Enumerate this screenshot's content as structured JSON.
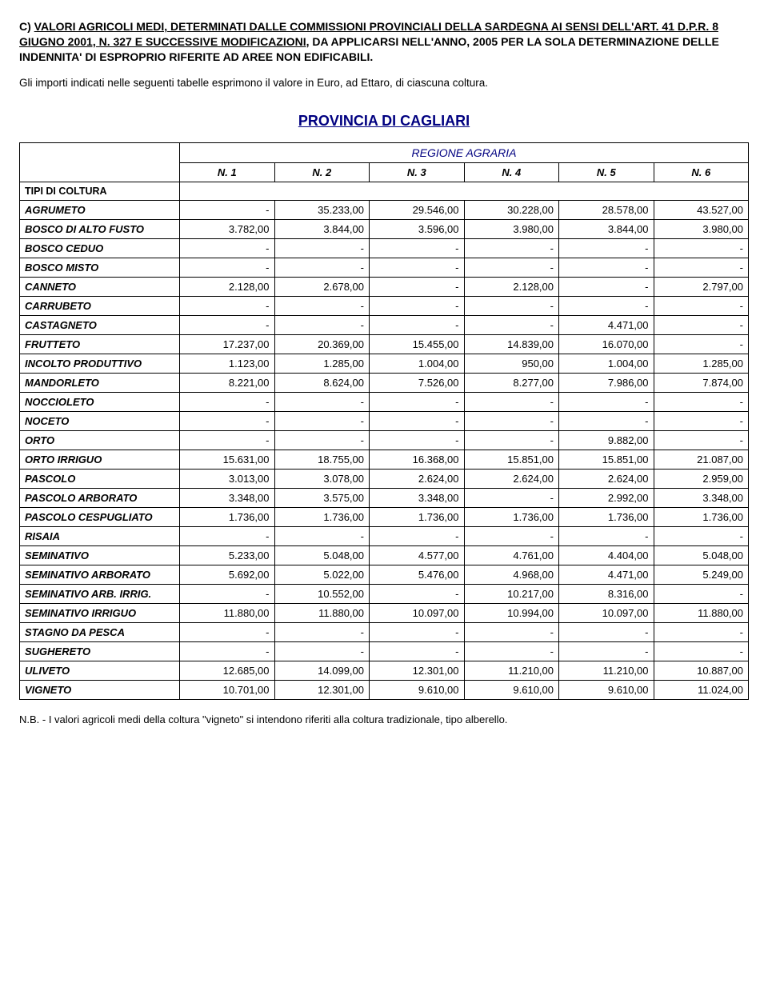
{
  "header": {
    "line1_prefix": "C) ",
    "line1_underlined": "VALORI AGRICOLI MEDI, DETERMINATI DALLE COMMISSIONI PROVINCIALI DELLA SARDEGNA AI SENSI DELL'ART. 41 D.P.R. 8 GIUGNO 2001, N. 327 E SUCCESSIVE MODIFICAZIONI",
    "line1_suffix": ", DA APPLICARSI NELL'ANNO, 2005 PER LA SOLA DETERMINAZIONE DELLE INDENNITA' DI ESPROPRIO RIFERITE AD AREE NON EDIFICABILI."
  },
  "intro": "Gli importi indicati nelle seguenti tabelle esprimono il valore in Euro, ad Ettaro, di ciascuna coltura.",
  "province_title": "PROVINCIA DI CAGLIARI",
  "table": {
    "region_header": "REGIONE AGRARIA",
    "types_label": "TIPI DI COLTURA",
    "columns": [
      "N. 1",
      "N. 2",
      "N. 3",
      "N. 4",
      "N. 5",
      "N. 6"
    ],
    "rows": [
      {
        "label": "AGRUMETO",
        "values": [
          "-",
          "35.233,00",
          "29.546,00",
          "30.228,00",
          "28.578,00",
          "43.527,00"
        ]
      },
      {
        "label": "BOSCO DI ALTO FUSTO",
        "values": [
          "3.782,00",
          "3.844,00",
          "3.596,00",
          "3.980,00",
          "3.844,00",
          "3.980,00"
        ]
      },
      {
        "label": "BOSCO CEDUO",
        "values": [
          "-",
          "-",
          "-",
          "-",
          "-",
          "-"
        ]
      },
      {
        "label": "BOSCO MISTO",
        "values": [
          "-",
          "-",
          "-",
          "-",
          "-",
          "-"
        ]
      },
      {
        "label": "CANNETO",
        "values": [
          "2.128,00",
          "2.678,00",
          "-",
          "2.128,00",
          "-",
          "2.797,00"
        ]
      },
      {
        "label": "CARRUBETO",
        "values": [
          "-",
          "-",
          "-",
          "-",
          "-",
          "-"
        ]
      },
      {
        "label": "CASTAGNETO",
        "values": [
          "-",
          "-",
          "-",
          "-",
          "4.471,00",
          "-"
        ]
      },
      {
        "label": "FRUTTETO",
        "values": [
          "17.237,00",
          "20.369,00",
          "15.455,00",
          "14.839,00",
          "16.070,00",
          "-"
        ]
      },
      {
        "label": "INCOLTO PRODUTTIVO",
        "values": [
          "1.123,00",
          "1.285,00",
          "1.004,00",
          "950,00",
          "1.004,00",
          "1.285,00"
        ]
      },
      {
        "label": "MANDORLETO",
        "values": [
          "8.221,00",
          "8.624,00",
          "7.526,00",
          "8.277,00",
          "7.986,00",
          "7.874,00"
        ]
      },
      {
        "label": "NOCCIOLETO",
        "values": [
          "-",
          "-",
          "-",
          "-",
          "-",
          "-"
        ]
      },
      {
        "label": "NOCETO",
        "values": [
          "-",
          "-",
          "-",
          "-",
          "-",
          "-"
        ]
      },
      {
        "label": "ORTO",
        "values": [
          "-",
          "-",
          "-",
          "-",
          "9.882,00",
          "-"
        ]
      },
      {
        "label": "ORTO IRRIGUO",
        "values": [
          "15.631,00",
          "18.755,00",
          "16.368,00",
          "15.851,00",
          "15.851,00",
          "21.087,00"
        ]
      },
      {
        "label": "PASCOLO",
        "values": [
          "3.013,00",
          "3.078,00",
          "2.624,00",
          "2.624,00",
          "2.624,00",
          "2.959,00"
        ]
      },
      {
        "label": "PASCOLO ARBORATO",
        "values": [
          "3.348,00",
          "3.575,00",
          "3.348,00",
          "-",
          "2.992,00",
          "3.348,00"
        ]
      },
      {
        "label": "PASCOLO CESPUGLIATO",
        "values": [
          "1.736,00",
          "1.736,00",
          "1.736,00",
          "1.736,00",
          "1.736,00",
          "1.736,00"
        ]
      },
      {
        "label": "RISAIA",
        "values": [
          "-",
          "-",
          "-",
          "-",
          "-",
          "-"
        ]
      },
      {
        "label": "SEMINATIVO",
        "values": [
          "5.233,00",
          "5.048,00",
          "4.577,00",
          "4.761,00",
          "4.404,00",
          "5.048,00"
        ]
      },
      {
        "label": "SEMINATIVO ARBORATO",
        "values": [
          "5.692,00",
          "5.022,00",
          "5.476,00",
          "4.968,00",
          "4.471,00",
          "5.249,00"
        ]
      },
      {
        "label": "SEMINATIVO ARB. IRRIG.",
        "values": [
          "-",
          "10.552,00",
          "-",
          "10.217,00",
          "8.316,00",
          "-"
        ]
      },
      {
        "label": "SEMINATIVO IRRIGUO",
        "values": [
          "11.880,00",
          "11.880,00",
          "10.097,00",
          "10.994,00",
          "10.097,00",
          "11.880,00"
        ]
      },
      {
        "label": "STAGNO DA PESCA",
        "values": [
          "-",
          "-",
          "-",
          "-",
          "-",
          "-"
        ]
      },
      {
        "label": "SUGHERETO",
        "values": [
          "-",
          "-",
          "-",
          "-",
          "-",
          "-"
        ]
      },
      {
        "label": "ULIVETO",
        "values": [
          "12.685,00",
          "14.099,00",
          "12.301,00",
          "11.210,00",
          "11.210,00",
          "10.887,00"
        ]
      },
      {
        "label": "VIGNETO",
        "values": [
          "10.701,00",
          "12.301,00",
          "9.610,00",
          "9.610,00",
          "9.610,00",
          "11.024,00"
        ]
      }
    ]
  },
  "footnote": "N.B. - I valori agricoli medi della coltura \"vigneto\" si intendono riferiti alla coltura tradizionale, tipo alberello."
}
